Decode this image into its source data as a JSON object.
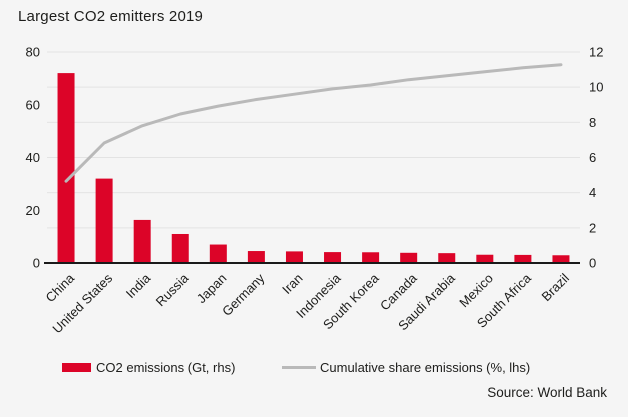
{
  "title": "Largest CO2 emitters 2019",
  "source": "Source: World Bank",
  "legend": [
    {
      "label": "CO2 emissions (Gt, rhs)",
      "swatch": "bar"
    },
    {
      "label": "Cumulative share emissions (%, lhs)",
      "swatch": "line"
    }
  ],
  "colors": {
    "bar": "#dc0428",
    "line": "#b9b9b9",
    "grid": "#e3e3e3",
    "axis": "#1a1a1a",
    "text": "#1d1d1b",
    "background": "#f5f5f5"
  },
  "chart_data": {
    "type": "bar",
    "subtype": "bar-line-combo",
    "title": "Largest CO2 emitters 2019",
    "categories": [
      "China",
      "United States",
      "India",
      "Russia",
      "Japan",
      "Germany",
      "Iran",
      "Indonesia",
      "South Korea",
      "Canada",
      "Saudi Arabia",
      "Mexico",
      "South Africa",
      "Brazil"
    ],
    "series": [
      {
        "name": "CO2 emissions (Gt, rhs)",
        "type": "bar",
        "axis": "right",
        "values": [
          10.8,
          4.8,
          2.45,
          1.65,
          1.05,
          0.68,
          0.66,
          0.62,
          0.61,
          0.58,
          0.56,
          0.47,
          0.46,
          0.44
        ]
      },
      {
        "name": "Cumulative share emissions (%, lhs)",
        "type": "line",
        "axis": "left",
        "values": [
          31.0,
          45.5,
          52.0,
          56.5,
          59.5,
          62.0,
          64.0,
          66.0,
          67.5,
          69.5,
          71.0,
          72.5,
          74.0,
          75.2
        ]
      }
    ],
    "left_axis": {
      "range": [
        0,
        80
      ],
      "ticks": [
        0,
        20,
        40,
        60,
        80
      ]
    },
    "right_axis": {
      "range": [
        0,
        12
      ],
      "ticks": [
        0,
        2,
        4,
        6,
        8,
        10,
        12
      ]
    },
    "grid": true,
    "legend_position": "bottom",
    "xlabel": "",
    "ylabel_left": "%",
    "ylabel_right": "Gt"
  }
}
